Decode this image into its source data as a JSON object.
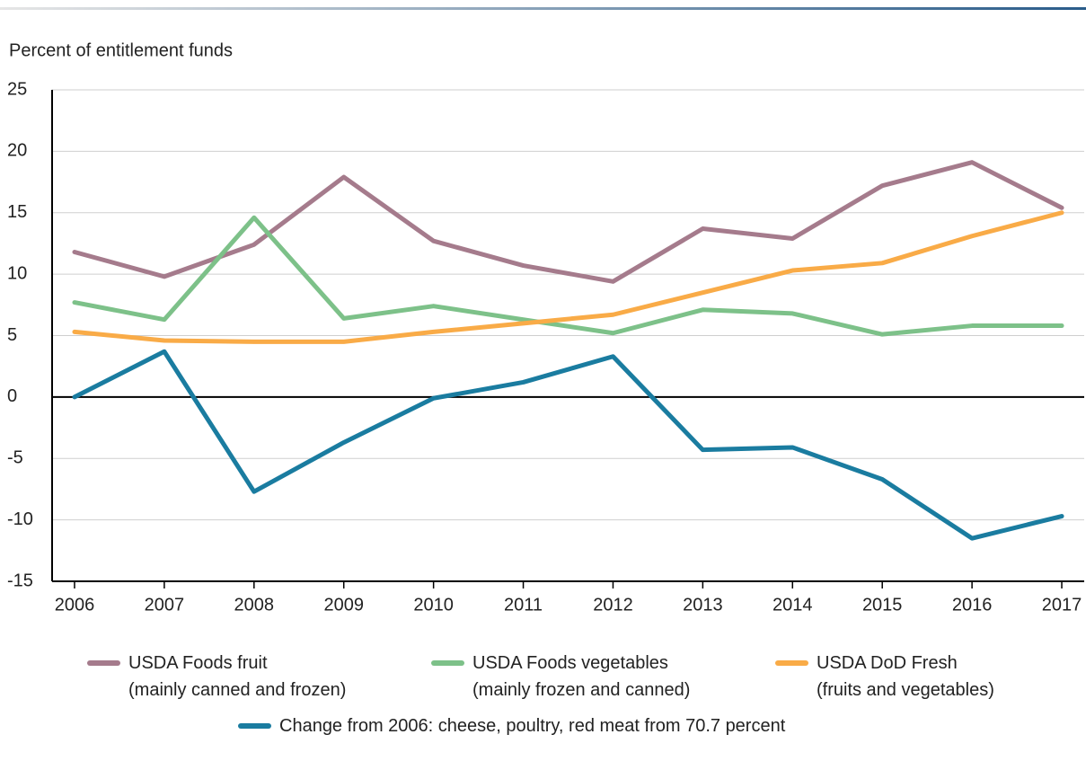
{
  "chart_data": {
    "type": "line",
    "y_label": "Percent of entitlement funds",
    "x": [
      2006,
      2007,
      2008,
      2009,
      2010,
      2011,
      2012,
      2013,
      2014,
      2015,
      2016,
      2017
    ],
    "xlim": [
      2005.75,
      2017.25
    ],
    "xticks": [
      2006,
      2007,
      2008,
      2009,
      2010,
      2011,
      2012,
      2013,
      2014,
      2015,
      2016,
      2017
    ],
    "ylim": [
      -15,
      25
    ],
    "yticks": [
      -15,
      -10,
      -5,
      0,
      5,
      10,
      15,
      20,
      25
    ],
    "grid": true,
    "legend": "bottom",
    "series": [
      {
        "name": "USDA Foods fruit\n(mainly canned and frozen)",
        "color": "#a57b8c",
        "values": [
          11.8,
          9.8,
          12.4,
          17.9,
          12.7,
          10.7,
          9.4,
          13.7,
          12.9,
          17.2,
          19.1,
          15.4
        ]
      },
      {
        "name": "USDA Foods vegetables\n(mainly frozen and canned)",
        "color": "#7dc189",
        "values": [
          7.7,
          6.3,
          14.6,
          6.4,
          7.4,
          6.3,
          5.2,
          7.1,
          6.8,
          5.1,
          5.8,
          5.8
        ]
      },
      {
        "name": "USDA DoD Fresh\n(fruits and vegetables)",
        "color": "#f9ab47",
        "values": [
          5.3,
          4.6,
          4.5,
          4.5,
          5.3,
          6.0,
          6.7,
          8.5,
          10.3,
          10.9,
          13.1,
          15.0
        ]
      },
      {
        "name": "Change from 2006: cheese, poultry, red meat from 70.7 percent",
        "color": "#1a7ca0",
        "values": [
          0,
          3.7,
          -7.7,
          -3.7,
          -0.1,
          1.2,
          3.3,
          -4.3,
          -4.1,
          -6.7,
          -11.5,
          -9.7
        ]
      }
    ]
  }
}
